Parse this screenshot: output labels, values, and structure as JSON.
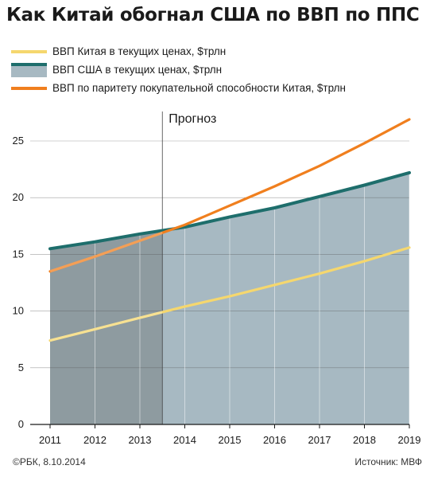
{
  "title": "Как Китай обогнал США по ВВП по ППС",
  "legend": [
    {
      "label": "ВВП Китая в текущих ценах, $трлн",
      "color": "#f5d76e",
      "kind": "line"
    },
    {
      "label": "ВВП США в текущих ценах, $трлн",
      "color": "#1e6e6c",
      "fill": "#a7b9c2",
      "kind": "area"
    },
    {
      "label": "ВВП по паритету покупательной способности Китая, $трлн",
      "color": "#f07f1e",
      "kind": "line"
    }
  ],
  "forecast_label": "Прогноз",
  "footer": {
    "copyright": "©РБК, 8.10.2014",
    "source": "Источник: МВФ"
  },
  "colors": {
    "area_fill": "#a7b9c2",
    "area_fill_history": "#8e9ba0",
    "grid": "#ffffff",
    "forecast_line": "#444444",
    "axis": "#1a1a1a"
  },
  "chart_data": {
    "type": "line",
    "x": [
      2011,
      2012,
      2013,
      2014,
      2015,
      2016,
      2017,
      2018,
      2019
    ],
    "xtick_labels": [
      "2011",
      "2012",
      "2013",
      "2014",
      "2015",
      "2016",
      "2017",
      "2018",
      "2019"
    ],
    "ylim": [
      0,
      28
    ],
    "yticks": [
      0,
      5,
      10,
      15,
      20,
      25
    ],
    "ytick_labels": [
      "0",
      "5",
      "10",
      "15",
      "20",
      "25"
    ],
    "forecast_start": 2013.5,
    "series": [
      {
        "name": "ВВП Китая в текущих ценах, $трлн",
        "type": "line",
        "color": "#f5d76e",
        "values": [
          7.4,
          8.4,
          9.4,
          10.4,
          11.3,
          12.3,
          13.3,
          14.4,
          15.6
        ]
      },
      {
        "name": "ВВП США в текущих ценах, $трлн",
        "type": "area",
        "color": "#1e6e6c",
        "values": [
          15.5,
          16.1,
          16.8,
          17.4,
          18.3,
          19.1,
          20.1,
          21.1,
          22.2
        ]
      },
      {
        "name": "ВВП по паритету покупательной способности Китая, $трлн",
        "type": "line",
        "color": "#f07f1e",
        "values": [
          13.5,
          14.8,
          16.2,
          17.6,
          19.3,
          21.0,
          22.8,
          24.8,
          26.9
        ]
      }
    ]
  }
}
